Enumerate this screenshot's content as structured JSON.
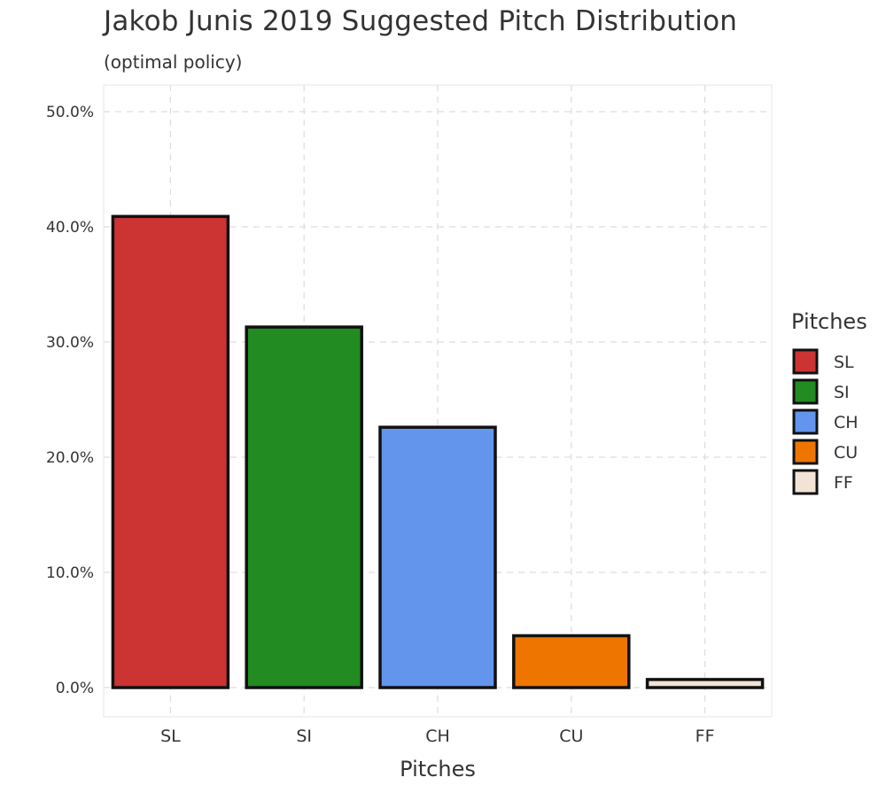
{
  "chart_data": {
    "type": "bar",
    "title": "Jakob Junis 2019 Suggested Pitch Distribution",
    "subtitle": "(optimal policy)",
    "xlabel": "Pitches",
    "ylabel": "",
    "categories": [
      "SL",
      "SI",
      "CH",
      "CU",
      "FF"
    ],
    "values": [
      40.9,
      31.3,
      22.6,
      4.5,
      0.7
    ],
    "value_format": "percent",
    "ylim": [
      0,
      50
    ],
    "yticks": [
      0,
      10,
      20,
      30,
      40,
      50
    ],
    "ytick_labels": [
      "0.0%",
      "10.0%",
      "20.0%",
      "30.0%",
      "40.0%",
      "50.0%"
    ],
    "grid": true,
    "legend": {
      "title": "Pitches",
      "placement": "right",
      "entries": [
        "SL",
        "SI",
        "CH",
        "CU",
        "FF"
      ]
    },
    "colors": [
      "#cc3333",
      "#228b22",
      "#6495ed",
      "#ee7600",
      "#f2e3d5"
    ],
    "bar_outline_color": "#111111"
  }
}
